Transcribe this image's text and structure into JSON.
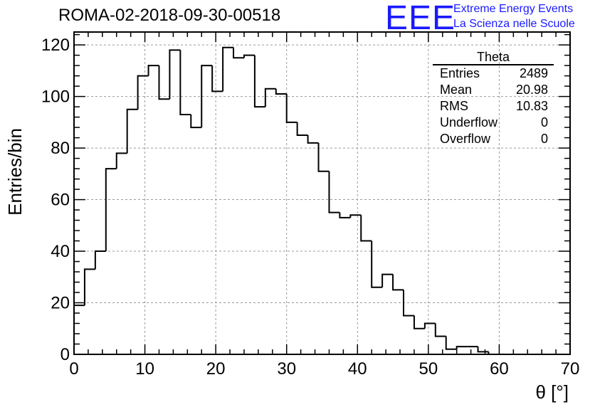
{
  "page": {
    "title": "ROMA-02-2018-09-30-00518",
    "logo": {
      "mark": "EEE",
      "line1": "Extreme Energy Events",
      "line2": "La Scienza nelle Scuole"
    },
    "stats_box": {
      "title": "Theta",
      "rows": [
        {
          "label": "Entries",
          "value": "2489"
        },
        {
          "label": "Mean",
          "value": "20.98"
        },
        {
          "label": "RMS",
          "value": "10.83"
        },
        {
          "label": "Underflow",
          "value": "0"
        },
        {
          "label": "Overflow",
          "value": "0"
        }
      ]
    }
  },
  "chart_data": {
    "type": "bar",
    "histogram": true,
    "bin_width": 1.5,
    "x_start": 0,
    "values": [
      19,
      33,
      40,
      72,
      78,
      95,
      108,
      112,
      99,
      118,
      93,
      88,
      112,
      102,
      119,
      115,
      116,
      96,
      103,
      101,
      90,
      85,
      82,
      71,
      55,
      53,
      54,
      44,
      26,
      31,
      25,
      15,
      10,
      12,
      7,
      2,
      3,
      3,
      1,
      0,
      0,
      0
    ],
    "xlabel": "θ [°]",
    "ylabel": "Entries/bin",
    "xlim": [
      0,
      70
    ],
    "ylim": [
      0,
      125
    ],
    "x_ticks": [
      0,
      10,
      20,
      30,
      40,
      50,
      60,
      70
    ],
    "y_ticks": [
      0,
      20,
      40,
      60,
      80,
      100,
      120
    ],
    "grid": true,
    "colors": {
      "line": "#000000",
      "grid": "#9a9a9a",
      "logo": "#1a1aff"
    }
  }
}
